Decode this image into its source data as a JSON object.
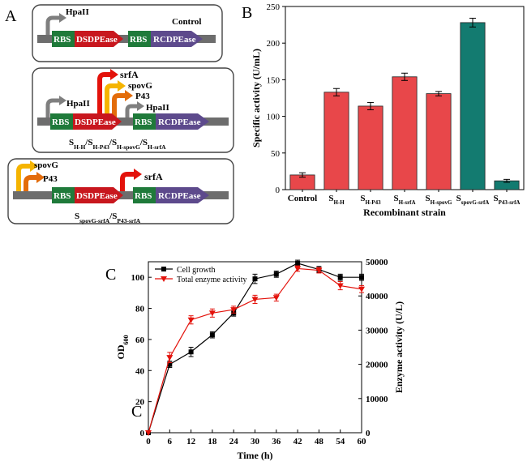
{
  "panels": {
    "A": "A",
    "B": "B",
    "C": "C",
    "C_dup": "C"
  },
  "constructs": [
    {
      "promoters_left": [
        "HpaII"
      ],
      "promoters_mid": [],
      "right_label": "Control",
      "caption": [],
      "colors": {
        "mid_arrow": "#b51a1a"
      }
    },
    {
      "promoters_left": [
        "HpaII"
      ],
      "promoters_mid": [
        "srfA",
        "spovG",
        "P43",
        "HpaII"
      ],
      "caption": [
        {
          "t": "S"
        },
        {
          "t": "H-H",
          "sub": true
        },
        {
          "t": "/S"
        },
        {
          "t": "H-P43",
          "sub": true
        },
        {
          "t": "/S"
        },
        {
          "t": "H-spovG",
          "sub": true
        },
        {
          "t": "/S"
        },
        {
          "t": "H-srfA",
          "sub": true
        }
      ]
    },
    {
      "promoters_left": [
        "spovG",
        "P43"
      ],
      "promoters_mid": [
        "srfA"
      ],
      "caption": [
        {
          "t": "S"
        },
        {
          "t": "spovG-srfA",
          "sub": true
        },
        {
          "t": "/S"
        },
        {
          "t": "P43-srfA",
          "sub": true
        }
      ]
    }
  ],
  "gene_labels": {
    "rbs": "RBS",
    "gene1": "DSDPEase",
    "gene2": "RCDPEase"
  },
  "colors": {
    "rbs_green": "#1f7a3a",
    "dsdpease_red": "#c8171e",
    "rcdpease_purple": "#5d4a8c",
    "backbone_gray": "#6d6d6d",
    "arrow_hpaii": "#7f7f7f",
    "arrow_srfa": "#e3120b",
    "arrow_spovg": "#f5b400",
    "arrow_p43": "#e36c0a",
    "bar_red": "#e8474a",
    "bar_teal": "#137b70",
    "line_black": "#000000",
    "line_red": "#e3120b"
  },
  "chart_data": [
    {
      "type": "bar",
      "ylabel": "Specific activity (U/mL)",
      "xlabel": "Recombinant strain",
      "ylim": [
        0,
        250
      ],
      "yticks": [
        0,
        50,
        100,
        150,
        200,
        250
      ],
      "categories": [
        {
          "parts": [
            {
              "t": "Control"
            }
          ]
        },
        {
          "parts": [
            {
              "t": "S"
            },
            {
              "t": "H-H",
              "sub": true
            }
          ]
        },
        {
          "parts": [
            {
              "t": "S"
            },
            {
              "t": "H-P43",
              "sub": true
            }
          ]
        },
        {
          "parts": [
            {
              "t": "S"
            },
            {
              "t": "H-srfA",
              "sub": true
            }
          ]
        },
        {
          "parts": [
            {
              "t": "S"
            },
            {
              "t": "H-spovG",
              "sub": true
            }
          ]
        },
        {
          "parts": [
            {
              "t": "S"
            },
            {
              "t": "spovG-srfA",
              "sub": true
            }
          ]
        },
        {
          "parts": [
            {
              "t": "S"
            },
            {
              "t": "P43-srfA",
              "sub": true
            }
          ]
        }
      ],
      "values": [
        20,
        133,
        114,
        154,
        131,
        228,
        12
      ],
      "errors": [
        3,
        5,
        5,
        5,
        3,
        6,
        2
      ],
      "bar_colors": [
        "#e8474a",
        "#e8474a",
        "#e8474a",
        "#e8474a",
        "#e8474a",
        "#137b70",
        "#137b70"
      ]
    },
    {
      "type": "line",
      "xlabel": "Time (h)",
      "ylabel_left": {
        "parts": [
          {
            "t": "OD"
          },
          {
            "t": "600",
            "sub": true
          }
        ]
      },
      "ylabel_right": "Enzyme activity (U/L)",
      "xlim": [
        0,
        60
      ],
      "xticks": [
        0,
        6,
        12,
        18,
        24,
        30,
        36,
        42,
        48,
        54,
        60
      ],
      "ylim_left": [
        0,
        110
      ],
      "yticks_left": [
        0,
        20,
        40,
        60,
        80,
        100
      ],
      "ylim_right": [
        0,
        50000
      ],
      "yticks_right": [
        0,
        10000,
        20000,
        30000,
        40000,
        50000
      ],
      "series": [
        {
          "name": "Cell growth",
          "axis": "left",
          "marker": "square",
          "color": "#000000",
          "x": [
            0,
            6,
            12,
            18,
            24,
            30,
            36,
            42,
            48,
            54,
            60
          ],
          "y": [
            0,
            44,
            52,
            63,
            77,
            99,
            102,
            109,
            105,
            100,
            100
          ],
          "err": [
            0,
            2,
            3,
            2,
            2,
            3,
            2,
            2,
            2,
            2,
            2
          ]
        },
        {
          "name": "Total enzyme activity",
          "axis": "right",
          "marker": "triangle-down",
          "color": "#e3120b",
          "x": [
            0,
            6,
            12,
            18,
            24,
            30,
            36,
            42,
            48,
            54,
            60
          ],
          "y": [
            0,
            22000,
            33000,
            35000,
            36000,
            39000,
            39500,
            48000,
            47500,
            43000,
            42000
          ],
          "err": [
            0,
            1500,
            1200,
            1200,
            1000,
            1200,
            1000,
            800,
            800,
            1200,
            1000
          ]
        }
      ]
    }
  ]
}
